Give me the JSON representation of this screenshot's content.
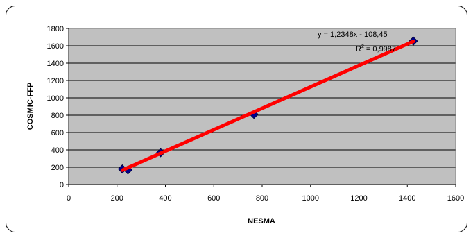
{
  "chart_data": {
    "type": "scatter",
    "title": "",
    "xlabel": "NESMA",
    "ylabel": "COSMIC-FFP",
    "xlim": [
      0,
      1600
    ],
    "ylim": [
      0,
      1800
    ],
    "xticks": [
      0,
      200,
      400,
      600,
      800,
      1000,
      1200,
      1400,
      1600
    ],
    "yticks": [
      0,
      200,
      400,
      600,
      800,
      1000,
      1200,
      1400,
      1600,
      1800
    ],
    "grid": "horizontal",
    "plot_background": "#c0c0c0",
    "series": [
      {
        "points": [
          {
            "x": 222,
            "y": 180
          },
          {
            "x": 245,
            "y": 168
          },
          {
            "x": 380,
            "y": 368
          },
          {
            "x": 766,
            "y": 810
          },
          {
            "x": 1425,
            "y": 1655
          }
        ],
        "marker": "diamond",
        "color": "#00008b"
      }
    ],
    "trendline": {
      "slope": 1.2348,
      "intercept": -108.45,
      "x_range": [
        222,
        1425
      ],
      "color": "#ff0000",
      "equation": "y = 1,2348x - 108,45",
      "r2_label": "R",
      "r2_sup": "2",
      "r2_value": " = 0,9987"
    }
  }
}
